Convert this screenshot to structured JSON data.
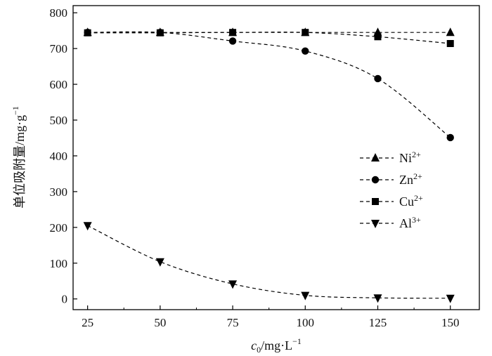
{
  "chart_data": {
    "type": "line",
    "xlabel": {
      "prefix": "c",
      "sub": "0",
      "suffix": "/mg·L",
      "sup": "−1"
    },
    "ylabel": {
      "text": "单位吸附量/mg·g",
      "sup": "−1"
    },
    "x": [
      25,
      50,
      75,
      100,
      125,
      150
    ],
    "xticks": [
      "25",
      "50",
      "75",
      "100",
      "125",
      "150"
    ],
    "yticks": [
      "0",
      "100",
      "200",
      "300",
      "400",
      "500",
      "600",
      "700",
      "800"
    ],
    "xlim": [
      20,
      160
    ],
    "ylim": [
      -30,
      820
    ],
    "line_style": "dashed",
    "legend_position": "center-right",
    "series": [
      {
        "name": "Ni",
        "charge": "2+",
        "marker": "triangle-up",
        "values": [
          745,
          745,
          745,
          745,
          745,
          745
        ]
      },
      {
        "name": "Zn",
        "charge": "2+",
        "marker": "circle",
        "values": [
          745,
          745,
          721,
          693,
          616,
          451
        ]
      },
      {
        "name": "Cu",
        "charge": "2+",
        "marker": "square",
        "values": [
          744,
          744,
          745,
          745,
          733,
          714
        ]
      },
      {
        "name": "Al",
        "charge": "3+",
        "marker": "triangle-down",
        "values": [
          205,
          104,
          42,
          10,
          3,
          2
        ]
      }
    ]
  }
}
